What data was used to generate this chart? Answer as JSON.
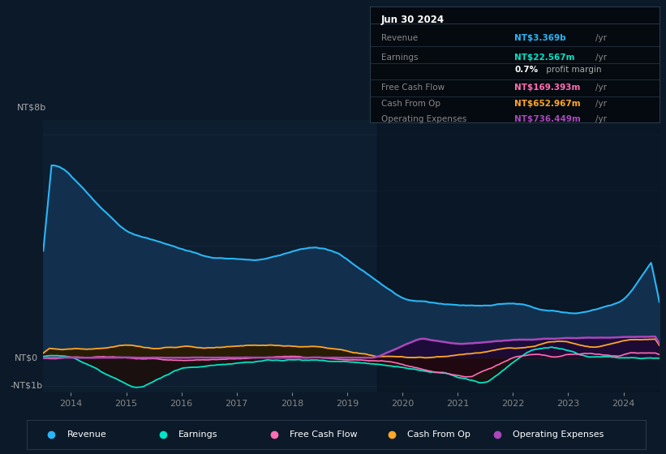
{
  "bg_color": "#0b1929",
  "panel_bg_color": "#0d1e30",
  "right_panel_color": "#0a1520",
  "series": {
    "revenue": {
      "color": "#29b6f6",
      "fill_color": "#12304d",
      "label": "Revenue"
    },
    "earnings": {
      "color": "#00e5c8",
      "fill_color": "#1a2a2a",
      "label": "Earnings"
    },
    "fcf": {
      "color": "#ff6eb4",
      "fill_color": "#2a0a18",
      "label": "Free Cash Flow"
    },
    "cashfromop": {
      "color": "#ffa726",
      "fill_color": "#2e1f00",
      "label": "Cash From Op"
    },
    "opex": {
      "color": "#ab47bc",
      "fill_color": "#2d1050",
      "label": "Operating Expenses"
    }
  },
  "ylim": [
    -1250000000.0,
    8500000000.0
  ],
  "ytick_positions": [
    -1000000000.0,
    0,
    2000000000.0,
    4000000000.0,
    6000000000.0,
    8000000000.0
  ],
  "ytick_labels_left": [
    "",
    "NT$0",
    "",
    "",
    "",
    ""
  ],
  "ylabel_top": "NT$8b",
  "ylabel_zero": "NT$0",
  "ylabel_neg1": "-NT$1b",
  "xtick_vals": [
    2014,
    2015,
    2016,
    2017,
    2018,
    2019,
    2020,
    2021,
    2022,
    2023,
    2024
  ],
  "legend_items": [
    {
      "label": "Revenue",
      "color": "#29b6f6"
    },
    {
      "label": "Earnings",
      "color": "#00e5c8"
    },
    {
      "label": "Free Cash Flow",
      "color": "#ff6eb4"
    },
    {
      "label": "Cash From Op",
      "color": "#ffa726"
    },
    {
      "label": "Operating Expenses",
      "color": "#ab47bc"
    }
  ],
  "infobox": {
    "date": "Jun 30 2024",
    "rows": [
      {
        "label": "Revenue",
        "value": "NT$3.369b",
        "vcolor": "#29b6f6"
      },
      {
        "label": "Earnings",
        "value": "NT$22.567m",
        "vcolor": "#00e5c8"
      },
      {
        "label": "",
        "value": "0.7%",
        "vcolor": "#ffffff",
        "suffix": " profit margin"
      },
      {
        "label": "Free Cash Flow",
        "value": "NT$169.393m",
        "vcolor": "#ff6eb4"
      },
      {
        "label": "Cash From Op",
        "value": "NT$652.967m",
        "vcolor": "#ffa726"
      },
      {
        "label": "Operating Expenses",
        "value": "NT$736.449m",
        "vcolor": "#ab47bc"
      }
    ]
  }
}
